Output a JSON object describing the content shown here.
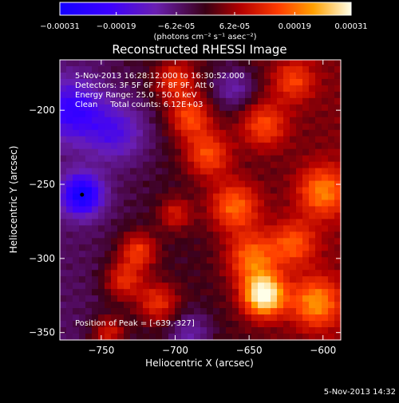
{
  "colorbar": {
    "ticks": [
      "-0.00031",
      "-0.00019",
      "-6.2e-05",
      "6.2e-05",
      "0.00019",
      "0.00031"
    ],
    "tick_values": [
      -0.00031,
      -0.00019,
      -6.2e-05,
      6.2e-05,
      0.00019,
      0.00031
    ],
    "range": [
      -0.00031,
      0.00031
    ],
    "unit_label": "(photons cm⁻² s⁻¹ asec⁻²)"
  },
  "chart_data": {
    "type": "heatmap",
    "title": "Reconstructed RHESSI Image",
    "xlabel": "Heliocentric X (arcsec)",
    "ylabel": "Heliocentric Y (arcsec)",
    "xlim": [
      -778,
      -588
    ],
    "ylim": [
      -355,
      -166
    ],
    "xticks": [
      -750,
      -700,
      -650,
      -600
    ],
    "yticks": [
      -200,
      -250,
      -300,
      -350
    ],
    "annotations": [
      "5-Nov-2013 16:28:12.000 to 16:30:52.000",
      "Detectors: 3F 5F 6F 7F 8F 9F, Att 0",
      "Energy Range: 25.0 - 50.0 keV",
      "Clean     Total counts: 6.12E+03"
    ],
    "peak_label": "Position of Peak = [-639,-327]",
    "peak": [
      -639,
      -327
    ],
    "min_marker": [
      -763,
      -257
    ],
    "hotspots": [
      {
        "x": -640,
        "y": -325,
        "amp": 1.0,
        "sigma": 10
      },
      {
        "x": -648,
        "y": -300,
        "amp": 0.55,
        "sigma": 12
      },
      {
        "x": -660,
        "y": -265,
        "amp": 0.55,
        "sigma": 12
      },
      {
        "x": -678,
        "y": -230,
        "amp": 0.5,
        "sigma": 11
      },
      {
        "x": -690,
        "y": -205,
        "amp": 0.5,
        "sigma": 10
      },
      {
        "x": -700,
        "y": -180,
        "amp": 0.45,
        "sigma": 10
      },
      {
        "x": -640,
        "y": -210,
        "amp": 0.45,
        "sigma": 11
      },
      {
        "x": -620,
        "y": -180,
        "amp": 0.4,
        "sigma": 10
      },
      {
        "x": -725,
        "y": -295,
        "amp": 0.5,
        "sigma": 9
      },
      {
        "x": -735,
        "y": -315,
        "amp": 0.45,
        "sigma": 9
      },
      {
        "x": -712,
        "y": -330,
        "amp": 0.45,
        "sigma": 10
      },
      {
        "x": -745,
        "y": -350,
        "amp": 0.4,
        "sigma": 8
      },
      {
        "x": -600,
        "y": -255,
        "amp": 0.55,
        "sigma": 12
      },
      {
        "x": -605,
        "y": -330,
        "amp": 0.6,
        "sigma": 12
      },
      {
        "x": -620,
        "y": -290,
        "amp": 0.45,
        "sigma": 11
      },
      {
        "x": -700,
        "y": -270,
        "amp": 0.35,
        "sigma": 8
      },
      {
        "x": -763,
        "y": -257,
        "amp": -0.9,
        "sigma": 10
      },
      {
        "x": -770,
        "y": -200,
        "amp": -0.6,
        "sigma": 15
      },
      {
        "x": -740,
        "y": -215,
        "amp": -0.45,
        "sigma": 14
      },
      {
        "x": -660,
        "y": -185,
        "amp": -0.35,
        "sigma": 10
      },
      {
        "x": -690,
        "y": -350,
        "amp": -0.3,
        "sigma": 10
      }
    ]
  },
  "footer": {
    "timestamp": "5-Nov-2013 14:32"
  }
}
